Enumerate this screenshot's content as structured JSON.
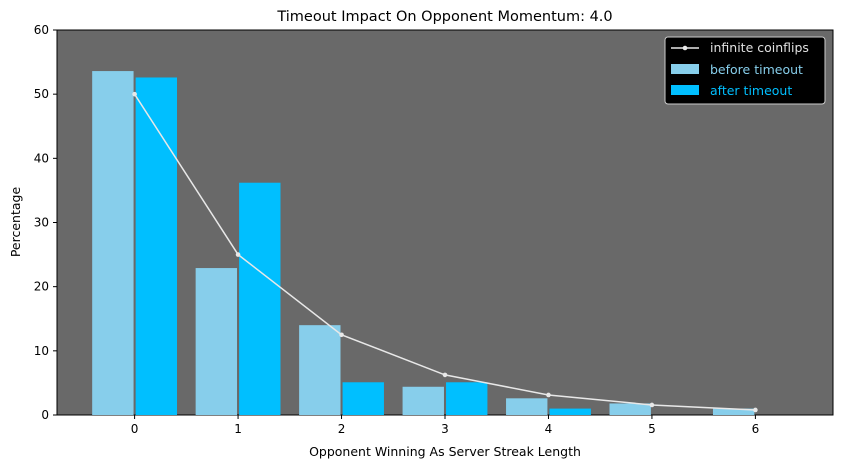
{
  "chart_data": {
    "type": "bar",
    "title": "Timeout Impact On Opponent Momentum: 4.0",
    "xlabel": "Opponent Winning As Server Streak Length",
    "ylabel": "Percentage",
    "categories": [
      "0",
      "1",
      "2",
      "3",
      "4",
      "5",
      "6"
    ],
    "x": [
      0,
      1,
      2,
      3,
      4,
      5,
      6
    ],
    "xlim": [
      -0.75,
      6.75
    ],
    "ylim": [
      0,
      60
    ],
    "yticks": [
      0,
      10,
      20,
      30,
      40,
      50,
      60
    ],
    "grid": false,
    "legend_position": "top-right",
    "series": [
      {
        "name": "before timeout",
        "kind": "bar",
        "color": "#87ceeb",
        "offset": -0.21,
        "values": [
          53.6,
          22.9,
          14.0,
          4.4,
          2.6,
          1.8,
          1.0
        ]
      },
      {
        "name": "after timeout",
        "kind": "bar",
        "color": "#00bfff",
        "offset": 0.21,
        "values": [
          52.6,
          36.2,
          5.1,
          5.1,
          1.0,
          null,
          null
        ]
      },
      {
        "name": "infinite coinflips",
        "kind": "line",
        "color": "#e8e8e8",
        "values": [
          50,
          25,
          12.5,
          6.25,
          3.125,
          1.5625,
          0.78125
        ]
      }
    ],
    "bar_width": 0.4,
    "colors": {
      "plot_background": "#696969",
      "legend_background": "#000000"
    }
  }
}
